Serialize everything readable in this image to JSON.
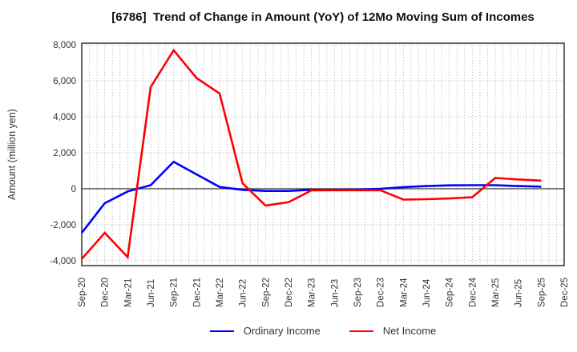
{
  "chart_data": {
    "type": "line",
    "title": "[6786]  Trend of Change in Amount (YoY) of 12Mo Moving Sum of Incomes",
    "ylabel": "Amount (million yen)",
    "xlabel": "",
    "x_categories": [
      "Sep-20",
      "Dec-20",
      "Mar-21",
      "Jun-21",
      "Sep-21",
      "Dec-21",
      "Mar-22",
      "Jun-22",
      "Sep-22",
      "Dec-22",
      "Mar-23",
      "Jun-23",
      "Sep-23",
      "Dec-23",
      "Mar-24",
      "Jun-24",
      "Sep-24",
      "Dec-24",
      "Mar-25",
      "Jun-25",
      "Sep-25",
      "Dec-25"
    ],
    "series": [
      {
        "name": "Ordinary Income",
        "color": "#0000ff",
        "values": [
          -2450,
          -800,
          -150,
          200,
          1500,
          800,
          100,
          -60,
          -120,
          -120,
          -60,
          -60,
          -40,
          0,
          90,
          150,
          190,
          200,
          200,
          150,
          120,
          null
        ]
      },
      {
        "name": "Net Income",
        "color": "#ff0000",
        "values": [
          -3900,
          -2450,
          -3800,
          5650,
          7700,
          6150,
          5300,
          300,
          -930,
          -750,
          -90,
          -80,
          -80,
          -80,
          -600,
          -580,
          -540,
          -470,
          600,
          520,
          450,
          null
        ]
      }
    ],
    "y_ticks": [
      8000,
      6000,
      4000,
      2000,
      0,
      -2000,
      -4000
    ],
    "y_tick_labels": [
      "8,000",
      "6,000",
      "4,000",
      "2,000",
      "0",
      "-2,000",
      "-4,000"
    ],
    "ylim": [
      -4270,
      8090
    ],
    "minor_vertical_gridlines_per_interval": 3,
    "grid": "dotted",
    "zero_line": true,
    "legend_position": "bottom-center"
  }
}
